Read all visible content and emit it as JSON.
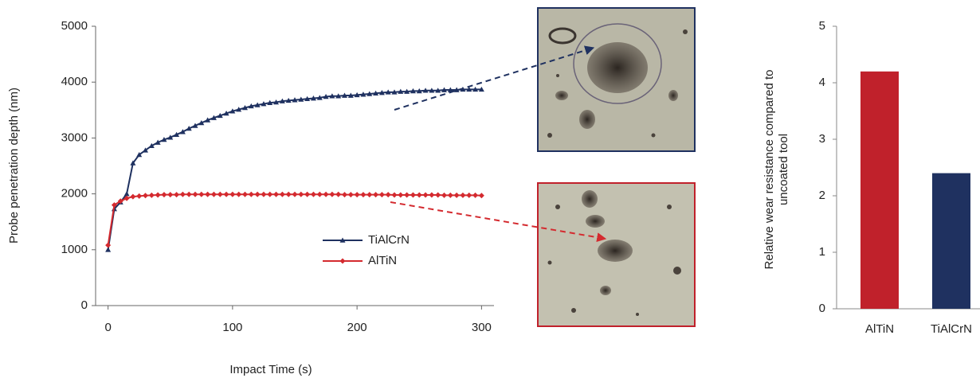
{
  "chart_data": [
    {
      "type": "line",
      "x_label": "Impact Time (s)",
      "y_label": "Probe penetration depth (nm)",
      "x": [
        0,
        5,
        10,
        15,
        20,
        25,
        30,
        35,
        40,
        45,
        50,
        55,
        60,
        65,
        70,
        75,
        80,
        85,
        90,
        95,
        100,
        105,
        110,
        115,
        120,
        125,
        130,
        135,
        140,
        145,
        150,
        155,
        160,
        165,
        170,
        175,
        180,
        185,
        190,
        195,
        200,
        205,
        210,
        215,
        220,
        225,
        230,
        235,
        240,
        245,
        250,
        255,
        260,
        265,
        270,
        275,
        280,
        285,
        290,
        295,
        300
      ],
      "series": [
        {
          "name": "TiAlCrN",
          "color": "#1f3160",
          "marker": "triangle",
          "values": [
            1000,
            1730,
            1850,
            2000,
            2550,
            2700,
            2780,
            2860,
            2920,
            2970,
            3010,
            3060,
            3110,
            3170,
            3220,
            3270,
            3320,
            3360,
            3400,
            3440,
            3480,
            3510,
            3540,
            3570,
            3590,
            3610,
            3630,
            3640,
            3660,
            3670,
            3680,
            3690,
            3700,
            3710,
            3720,
            3740,
            3750,
            3750,
            3760,
            3760,
            3770,
            3780,
            3790,
            3800,
            3810,
            3820,
            3820,
            3830,
            3830,
            3840,
            3840,
            3850,
            3850,
            3850,
            3860,
            3860,
            3860,
            3870,
            3870,
            3870,
            3870
          ]
        },
        {
          "name": "AlTiN",
          "color": "#d42a2f",
          "marker": "diamond",
          "values": [
            1080,
            1800,
            1870,
            1920,
            1950,
            1960,
            1970,
            1975,
            1980,
            1985,
            1985,
            1985,
            1990,
            1990,
            1990,
            1990,
            1990,
            1990,
            1990,
            1990,
            1990,
            1990,
            1990,
            1990,
            1990,
            1990,
            1990,
            1990,
            1990,
            1990,
            1990,
            1990,
            1990,
            1990,
            1990,
            1990,
            1990,
            1990,
            1985,
            1985,
            1985,
            1985,
            1985,
            1985,
            1985,
            1985,
            1980,
            1980,
            1980,
            1980,
            1980,
            1980,
            1980,
            1980,
            1975,
            1975,
            1975,
            1975,
            1975,
            1975,
            1970
          ]
        }
      ],
      "xlim": [
        -10,
        310
      ],
      "ylim": [
        0,
        5000
      ],
      "xticks": [
        0,
        100,
        200,
        300
      ],
      "yticks": [
        0,
        1000,
        2000,
        3000,
        4000,
        5000
      ]
    },
    {
      "type": "bar",
      "y_label": [
        "Relative wear resistance compared to",
        "uncoated tool"
      ],
      "categories": [
        "AlTiN",
        "TiAlCrN"
      ],
      "values": [
        4.2,
        2.4
      ],
      "colors": [
        "#c0212b",
        "#1f3160"
      ],
      "ylim": [
        0,
        5
      ],
      "yticks": [
        0,
        1,
        2,
        3,
        4,
        5
      ]
    }
  ]
}
